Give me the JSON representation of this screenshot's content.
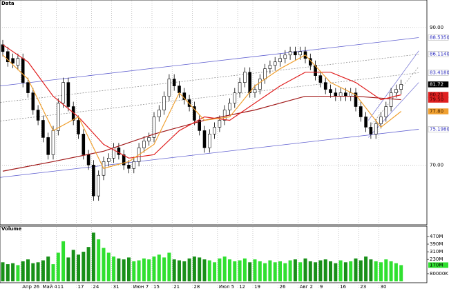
{
  "chart_data": [
    {
      "type": "candlestick",
      "title": "Data",
      "categories": [
        null,
        null,
        null,
        null,
        "Апр 26",
        null,
        null,
        null,
        "Май 4",
        null,
        null,
        "11",
        null,
        null,
        null,
        "17",
        null,
        null,
        "24",
        null,
        null,
        null,
        "31",
        null,
        null,
        null,
        "Июн 7",
        null,
        null,
        null,
        "15",
        null,
        null,
        null,
        "21",
        null,
        null,
        null,
        "28",
        null,
        null,
        null,
        null,
        "Июл 5",
        null,
        null,
        null,
        "12",
        null,
        null,
        "19",
        null,
        null,
        null,
        null,
        "26",
        null,
        null,
        null,
        "Авг 2",
        null,
        null,
        null,
        "9",
        null,
        null,
        null,
        "16",
        null,
        null,
        null,
        "23",
        null,
        null,
        null,
        "30",
        null,
        null,
        null,
        null
      ],
      "open": [
        87.5,
        86.5,
        85.5,
        84.5,
        85.5,
        82.0,
        80.5,
        78.0,
        76.5,
        74.0,
        71.5,
        75.0,
        79.0,
        82.0,
        78.5,
        76.5,
        74.5,
        71.5,
        70.0,
        65.5,
        68.5,
        70.5,
        71.0,
        72.5,
        71.5,
        70.0,
        69.5,
        70.5,
        72.5,
        73.5,
        74.0,
        77.0,
        78.0,
        80.0,
        82.5,
        81.5,
        80.5,
        79.5,
        78.5,
        76.5,
        75.0,
        72.5,
        74.5,
        75.5,
        76.5,
        78.0,
        79.0,
        80.5,
        82.0,
        83.5,
        80.5,
        81.0,
        82.5,
        84.0,
        84.5,
        85.0,
        85.5,
        86.0,
        86.5,
        86.0,
        86.5,
        85.5,
        84.5,
        83.0,
        82.0,
        81.0,
        80.5,
        80.0,
        80.5,
        80.0,
        80.5,
        78.5,
        77.0,
        75.5,
        74.5,
        76.0,
        77.0,
        78.5,
        80.5,
        81.0
      ],
      "high": [
        88.2,
        87.2,
        86.2,
        86.2,
        86.2,
        82.7,
        81.2,
        78.7,
        77.2,
        74.7,
        75.7,
        79.7,
        82.7,
        82.7,
        79.2,
        77.2,
        75.2,
        72.2,
        70.7,
        69.2,
        71.2,
        71.7,
        73.2,
        73.2,
        72.2,
        70.7,
        71.2,
        73.2,
        74.2,
        74.7,
        77.7,
        78.7,
        80.7,
        83.2,
        83.2,
        82.2,
        81.2,
        80.2,
        79.2,
        77.2,
        75.7,
        75.2,
        76.2,
        77.2,
        78.7,
        79.7,
        81.2,
        82.7,
        84.2,
        84.2,
        81.7,
        83.2,
        84.7,
        85.2,
        85.7,
        86.2,
        86.7,
        87.2,
        87.2,
        87.2,
        87.2,
        86.2,
        85.2,
        83.7,
        82.7,
        81.7,
        81.2,
        81.2,
        81.2,
        81.2,
        81.2,
        79.2,
        77.7,
        76.2,
        76.7,
        77.7,
        79.2,
        81.2,
        81.7,
        82.4
      ],
      "low": [
        85.8,
        84.3,
        84.1,
        83.8,
        81.3,
        79.8,
        77.3,
        75.8,
        73.3,
        70.8,
        70.8,
        74.3,
        78.3,
        77.8,
        75.8,
        73.8,
        70.8,
        69.3,
        64.8,
        64.8,
        67.8,
        69.8,
        70.3,
        70.8,
        69.3,
        68.8,
        68.8,
        69.8,
        71.8,
        72.8,
        73.3,
        76.3,
        77.3,
        79.3,
        80.8,
        79.8,
        78.8,
        77.8,
        75.8,
        74.3,
        71.8,
        71.8,
        73.8,
        74.8,
        75.8,
        77.3,
        78.3,
        79.8,
        81.3,
        79.8,
        79.8,
        80.3,
        81.8,
        83.3,
        83.8,
        84.3,
        84.8,
        85.3,
        85.3,
        85.3,
        84.8,
        83.8,
        82.3,
        81.3,
        80.3,
        79.8,
        79.3,
        79.3,
        79.3,
        79.3,
        77.8,
        76.3,
        74.8,
        73.8,
        73.8,
        75.3,
        76.3,
        77.8,
        79.8,
        80.3
      ],
      "close": [
        86.5,
        85.0,
        84.8,
        85.5,
        82.0,
        80.5,
        78.0,
        76.5,
        74.0,
        71.5,
        75.0,
        79.0,
        82.0,
        78.5,
        76.5,
        74.5,
        71.5,
        70.0,
        65.5,
        68.5,
        70.5,
        71.0,
        72.5,
        71.5,
        70.0,
        69.5,
        70.5,
        72.5,
        73.5,
        74.0,
        77.0,
        78.0,
        80.0,
        82.5,
        81.5,
        80.5,
        79.5,
        78.5,
        76.5,
        75.0,
        72.5,
        74.5,
        75.5,
        76.5,
        78.0,
        79.0,
        80.5,
        82.0,
        83.5,
        80.5,
        81.0,
        82.5,
        84.0,
        84.5,
        85.0,
        85.5,
        86.0,
        86.5,
        86.0,
        86.5,
        85.5,
        84.5,
        83.0,
        82.0,
        81.0,
        80.5,
        80.0,
        80.5,
        80.0,
        80.5,
        78.5,
        77.0,
        75.5,
        74.5,
        76.0,
        77.0,
        78.5,
        80.5,
        81.0,
        81.72
      ],
      "up_color": "#ffffff",
      "down_color": "#000000",
      "ylim": [
        61.4,
        93.7
      ],
      "yticks": [
        {
          "value": 90,
          "label": "90.00"
        },
        {
          "value": 70,
          "label": "70.00"
        }
      ],
      "overlays": [
        {
          "color": "#a01818",
          "x": [
            0,
            10,
            20,
            30,
            40,
            50,
            60,
            70,
            79
          ],
          "values": [
            69.1,
            70.5,
            72,
            74.5,
            76.5,
            78,
            80,
            80,
            79.5
          ]
        },
        {
          "color": "#e02020",
          "x": [
            0,
            5,
            10,
            15,
            20,
            25,
            30,
            35,
            40,
            45,
            50,
            55,
            60,
            65,
            70,
            75,
            79
          ],
          "values": [
            87.5,
            85,
            80,
            77,
            73,
            71,
            71.5,
            75,
            77,
            76.5,
            79,
            81.5,
            83.5,
            83.5,
            82,
            79.5,
            80.21
          ]
        },
        {
          "color": "#f0a030",
          "x": [
            0,
            5,
            10,
            15,
            20,
            25,
            30,
            35,
            40,
            45,
            50,
            55,
            60,
            65,
            70,
            75,
            79
          ],
          "values": [
            86,
            82.5,
            75,
            77,
            69.5,
            70.5,
            73,
            80.5,
            76.5,
            77,
            81.5,
            84,
            86,
            82,
            80.2,
            75.5,
            77.8
          ]
        }
      ],
      "channels": [
        {
          "color": "#6060d0",
          "dashed": false,
          "x": [
            -0.5,
            82.5
          ],
          "values": [
            81.5,
            88.535
          ]
        },
        {
          "color": "#909090",
          "dashed": true,
          "x": [
            -0.5,
            82.5
          ],
          "values": [
            79.1,
            86.114
          ]
        },
        {
          "color": "#909090",
          "dashed": true,
          "x": [
            -0.5,
            82.5
          ],
          "values": [
            76.4,
            83.418
          ]
        },
        {
          "color": "#6060d0",
          "dashed": false,
          "x": [
            -0.5,
            82.5
          ],
          "values": [
            68.2,
            75.198
          ]
        },
        {
          "color": "#8080d8",
          "dashed": false,
          "x": [
            72.5,
            82.5
          ],
          "values": [
            76.5,
            86.6
          ]
        },
        {
          "color": "#909090",
          "dashed": true,
          "x": [
            72.5,
            82.5
          ],
          "values": [
            75.3,
            84.3
          ]
        },
        {
          "color": "#8080d8",
          "dashed": false,
          "x": [
            72.5,
            82.5
          ],
          "values": [
            74.0,
            82.0
          ]
        }
      ],
      "price_labels": [
        {
          "value": 88.535,
          "label": "88.5350",
          "color": "#ffffff",
          "text_color": "#3030c0"
        },
        {
          "value": 86.114,
          "label": "86.1140",
          "color": "#ffffff",
          "text_color": "#3030c0"
        },
        {
          "value": 83.418,
          "label": "83.4180",
          "color": "#ffffff",
          "text_color": "#3030c0"
        },
        {
          "value": 81.72,
          "label": "81.72",
          "color": "#000000",
          "text_color": "#ffffff"
        },
        {
          "value": 80.21,
          "label": "80.21",
          "color": "#e02020",
          "text_color": "#400000"
        },
        {
          "value": 79.5,
          "label": "79.50",
          "color": "#e02020",
          "text_color": "#400000"
        },
        {
          "value": 77.8,
          "label": "77.80",
          "color": "#f0a030",
          "text_color": "#402000"
        },
        {
          "value": 75.198,
          "label": "75.1980",
          "color": "#ffffff",
          "text_color": "#3030c0"
        }
      ]
    },
    {
      "type": "bar",
      "title": "Volume",
      "values": [
        200,
        180,
        190,
        170,
        210,
        230,
        190,
        200,
        220,
        260,
        180,
        300,
        420,
        250,
        330,
        280,
        310,
        360,
        510,
        440,
        350,
        300,
        260,
        240,
        230,
        250,
        210,
        220,
        240,
        230,
        260,
        280,
        250,
        300,
        230,
        220,
        210,
        240,
        260,
        250,
        230,
        220,
        200,
        240,
        260,
        230,
        210,
        220,
        240,
        200,
        230,
        210,
        190,
        220,
        200,
        210,
        190,
        220,
        230,
        200,
        240,
        210,
        200,
        220,
        230,
        210,
        190,
        220,
        200,
        210,
        240,
        220,
        260,
        230,
        210,
        200,
        230,
        210,
        190,
        170
      ],
      "up_color": "#30e030",
      "down_color": "#189018",
      "ylim": [
        0,
        578
      ],
      "yticks": [
        {
          "value": 470,
          "label": "470M"
        },
        {
          "value": 390,
          "label": "390M"
        },
        {
          "value": 310,
          "label": "310M"
        },
        {
          "value": 230,
          "label": "230M"
        },
        {
          "value": 80,
          "label": "80000K"
        }
      ],
      "last_label": {
        "value": 170,
        "label": "170M",
        "color": "#30e030"
      }
    }
  ]
}
